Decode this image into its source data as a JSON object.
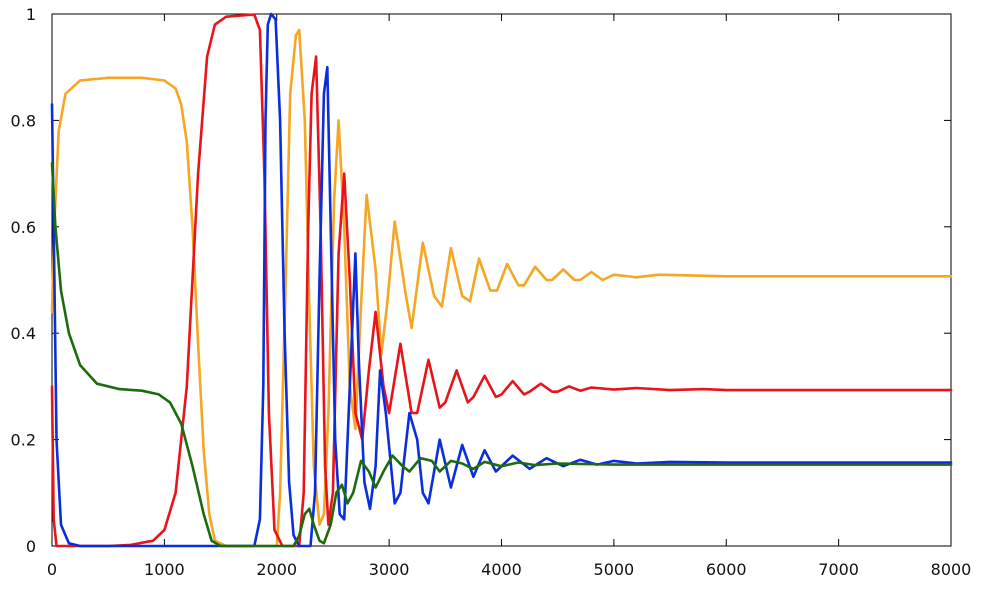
{
  "chart_data": {
    "type": "line",
    "title": "",
    "xlabel": "",
    "ylabel": "",
    "xlim": [
      0,
      8000
    ],
    "ylim": [
      0,
      1
    ],
    "xticks": [
      "0",
      "1000",
      "2000",
      "3000",
      "4000",
      "5000",
      "6000",
      "7000",
      "8000"
    ],
    "yticks": [
      "0",
      "0.2",
      "0.4",
      "0.6",
      "0.8",
      "1"
    ],
    "xtick_values": [
      0,
      1000,
      2000,
      3000,
      4000,
      5000,
      6000,
      7000,
      8000
    ],
    "ytick_values": [
      0,
      0.2,
      0.4,
      0.6,
      0.8,
      1
    ],
    "grid": false,
    "legend": "none",
    "series": [
      {
        "color": "#f5a623",
        "points": [
          [
            0,
            0.44
          ],
          [
            20,
            0.6
          ],
          [
            60,
            0.78
          ],
          [
            120,
            0.85
          ],
          [
            250,
            0.875
          ],
          [
            500,
            0.88
          ],
          [
            800,
            0.88
          ],
          [
            1000,
            0.875
          ],
          [
            1100,
            0.86
          ],
          [
            1150,
            0.83
          ],
          [
            1200,
            0.76
          ],
          [
            1250,
            0.6
          ],
          [
            1300,
            0.38
          ],
          [
            1350,
            0.18
          ],
          [
            1400,
            0.06
          ],
          [
            1450,
            0.01
          ],
          [
            1550,
            0.0
          ],
          [
            2000,
            0.0
          ],
          [
            2030,
            0.1
          ],
          [
            2080,
            0.5
          ],
          [
            2120,
            0.85
          ],
          [
            2170,
            0.96
          ],
          [
            2200,
            0.97
          ],
          [
            2250,
            0.8
          ],
          [
            2290,
            0.45
          ],
          [
            2330,
            0.15
          ],
          [
            2380,
            0.04
          ],
          [
            2420,
            0.06
          ],
          [
            2460,
            0.25
          ],
          [
            2510,
            0.65
          ],
          [
            2550,
            0.8
          ],
          [
            2600,
            0.6
          ],
          [
            2650,
            0.3
          ],
          [
            2700,
            0.22
          ],
          [
            2750,
            0.45
          ],
          [
            2800,
            0.66
          ],
          [
            2880,
            0.52
          ],
          [
            2930,
            0.36
          ],
          [
            2980,
            0.45
          ],
          [
            3050,
            0.61
          ],
          [
            3150,
            0.47
          ],
          [
            3200,
            0.41
          ],
          [
            3300,
            0.57
          ],
          [
            3400,
            0.47
          ],
          [
            3470,
            0.45
          ],
          [
            3550,
            0.56
          ],
          [
            3650,
            0.47
          ],
          [
            3720,
            0.46
          ],
          [
            3800,
            0.54
          ],
          [
            3900,
            0.48
          ],
          [
            3960,
            0.48
          ],
          [
            4050,
            0.53
          ],
          [
            4150,
            0.49
          ],
          [
            4200,
            0.49
          ],
          [
            4300,
            0.525
          ],
          [
            4400,
            0.5
          ],
          [
            4450,
            0.5
          ],
          [
            4550,
            0.52
          ],
          [
            4650,
            0.5
          ],
          [
            4700,
            0.5
          ],
          [
            4800,
            0.515
          ],
          [
            4900,
            0.5
          ],
          [
            5000,
            0.51
          ],
          [
            5200,
            0.505
          ],
          [
            5400,
            0.51
          ],
          [
            6000,
            0.507
          ],
          [
            8000,
            0.507
          ]
        ]
      },
      {
        "color": "#e8141a",
        "points": [
          [
            0,
            0.3
          ],
          [
            15,
            0.05
          ],
          [
            40,
            0.0
          ],
          [
            500,
            0.0
          ],
          [
            700,
            0.002
          ],
          [
            900,
            0.01
          ],
          [
            1000,
            0.03
          ],
          [
            1100,
            0.1
          ],
          [
            1200,
            0.3
          ],
          [
            1300,
            0.7
          ],
          [
            1380,
            0.92
          ],
          [
            1450,
            0.98
          ],
          [
            1550,
            0.995
          ],
          [
            1800,
            0.999
          ],
          [
            1850,
            0.97
          ],
          [
            1890,
            0.7
          ],
          [
            1930,
            0.25
          ],
          [
            1980,
            0.03
          ],
          [
            2050,
            0.0
          ],
          [
            2200,
            0.0
          ],
          [
            2240,
            0.1
          ],
          [
            2280,
            0.6
          ],
          [
            2310,
            0.85
          ],
          [
            2350,
            0.92
          ],
          [
            2390,
            0.6
          ],
          [
            2430,
            0.15
          ],
          [
            2460,
            0.04
          ],
          [
            2500,
            0.1
          ],
          [
            2550,
            0.55
          ],
          [
            2600,
            0.7
          ],
          [
            2650,
            0.5
          ],
          [
            2700,
            0.25
          ],
          [
            2760,
            0.2
          ],
          [
            2820,
            0.33
          ],
          [
            2880,
            0.44
          ],
          [
            2950,
            0.3
          ],
          [
            3000,
            0.25
          ],
          [
            3100,
            0.38
          ],
          [
            3200,
            0.25
          ],
          [
            3250,
            0.25
          ],
          [
            3350,
            0.35
          ],
          [
            3450,
            0.26
          ],
          [
            3500,
            0.27
          ],
          [
            3600,
            0.33
          ],
          [
            3700,
            0.27
          ],
          [
            3750,
            0.28
          ],
          [
            3850,
            0.32
          ],
          [
            3950,
            0.28
          ],
          [
            4000,
            0.285
          ],
          [
            4100,
            0.31
          ],
          [
            4200,
            0.285
          ],
          [
            4250,
            0.29
          ],
          [
            4350,
            0.305
          ],
          [
            4450,
            0.29
          ],
          [
            4500,
            0.29
          ],
          [
            4600,
            0.3
          ],
          [
            4700,
            0.292
          ],
          [
            4800,
            0.298
          ],
          [
            5000,
            0.294
          ],
          [
            5200,
            0.297
          ],
          [
            5500,
            0.293
          ],
          [
            5800,
            0.295
          ],
          [
            6000,
            0.293
          ],
          [
            8000,
            0.293
          ]
        ]
      },
      {
        "color": "#0a2edb",
        "points": [
          [
            0,
            0.83
          ],
          [
            15,
            0.6
          ],
          [
            40,
            0.2
          ],
          [
            80,
            0.04
          ],
          [
            150,
            0.005
          ],
          [
            250,
            0.0
          ],
          [
            1800,
            0.0
          ],
          [
            1850,
            0.05
          ],
          [
            1880,
            0.3
          ],
          [
            1900,
            0.8
          ],
          [
            1920,
            0.98
          ],
          [
            1950,
            1.0
          ],
          [
            1990,
            0.99
          ],
          [
            2030,
            0.8
          ],
          [
            2070,
            0.4
          ],
          [
            2110,
            0.12
          ],
          [
            2150,
            0.02
          ],
          [
            2200,
            0.0
          ],
          [
            2300,
            0.0
          ],
          [
            2340,
            0.1
          ],
          [
            2380,
            0.5
          ],
          [
            2420,
            0.85
          ],
          [
            2450,
            0.9
          ],
          [
            2480,
            0.6
          ],
          [
            2520,
            0.2
          ],
          [
            2560,
            0.06
          ],
          [
            2600,
            0.05
          ],
          [
            2650,
            0.3
          ],
          [
            2700,
            0.55
          ],
          [
            2730,
            0.35
          ],
          [
            2780,
            0.12
          ],
          [
            2830,
            0.07
          ],
          [
            2880,
            0.15
          ],
          [
            2920,
            0.33
          ],
          [
            2970,
            0.25
          ],
          [
            3050,
            0.08
          ],
          [
            3100,
            0.1
          ],
          [
            3180,
            0.25
          ],
          [
            3250,
            0.2
          ],
          [
            3300,
            0.1
          ],
          [
            3350,
            0.08
          ],
          [
            3450,
            0.2
          ],
          [
            3550,
            0.11
          ],
          [
            3650,
            0.19
          ],
          [
            3750,
            0.13
          ],
          [
            3850,
            0.18
          ],
          [
            3950,
            0.14
          ],
          [
            4100,
            0.17
          ],
          [
            4250,
            0.145
          ],
          [
            4400,
            0.165
          ],
          [
            4550,
            0.15
          ],
          [
            4700,
            0.162
          ],
          [
            4850,
            0.153
          ],
          [
            5000,
            0.16
          ],
          [
            5200,
            0.155
          ],
          [
            5500,
            0.158
          ],
          [
            6000,
            0.157
          ],
          [
            8000,
            0.157
          ]
        ]
      },
      {
        "color": "#1d6b0d",
        "points": [
          [
            0,
            0.72
          ],
          [
            30,
            0.6
          ],
          [
            80,
            0.48
          ],
          [
            150,
            0.4
          ],
          [
            250,
            0.34
          ],
          [
            400,
            0.305
          ],
          [
            600,
            0.295
          ],
          [
            800,
            0.292
          ],
          [
            950,
            0.285
          ],
          [
            1050,
            0.27
          ],
          [
            1150,
            0.23
          ],
          [
            1250,
            0.15
          ],
          [
            1350,
            0.06
          ],
          [
            1420,
            0.01
          ],
          [
            1500,
            0.0
          ],
          [
            2150,
            0.0
          ],
          [
            2200,
            0.02
          ],
          [
            2250,
            0.06
          ],
          [
            2290,
            0.07
          ],
          [
            2330,
            0.04
          ],
          [
            2380,
            0.01
          ],
          [
            2420,
            0.005
          ],
          [
            2480,
            0.04
          ],
          [
            2530,
            0.1
          ],
          [
            2580,
            0.115
          ],
          [
            2630,
            0.08
          ],
          [
            2680,
            0.1
          ],
          [
            2750,
            0.16
          ],
          [
            2820,
            0.14
          ],
          [
            2880,
            0.11
          ],
          [
            2950,
            0.14
          ],
          [
            3030,
            0.17
          ],
          [
            3120,
            0.15
          ],
          [
            3180,
            0.14
          ],
          [
            3280,
            0.165
          ],
          [
            3380,
            0.16
          ],
          [
            3450,
            0.14
          ],
          [
            3550,
            0.16
          ],
          [
            3650,
            0.155
          ],
          [
            3750,
            0.145
          ],
          [
            3850,
            0.158
          ],
          [
            4000,
            0.15
          ],
          [
            4150,
            0.157
          ],
          [
            4300,
            0.152
          ],
          [
            4500,
            0.155
          ],
          [
            5000,
            0.153
          ],
          [
            6000,
            0.153
          ],
          [
            8000,
            0.153
          ]
        ]
      }
    ]
  }
}
